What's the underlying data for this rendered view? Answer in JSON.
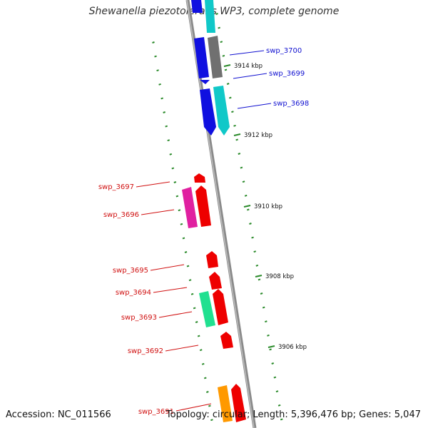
{
  "title": "Shewanella piezotolerans WP3, complete genome",
  "footer": {
    "accession": "Accession: NC_011566",
    "summary": "Topology: circular; Length: 5,396,476 bp; Genes: 5,047"
  },
  "colors": {
    "background": "#ffffff",
    "backbone": "#8a8a8a",
    "tick": "#2a8a2a",
    "label_forward": "#1010d0",
    "label_reverse": "#d01010",
    "cds_blue": "#1010e0",
    "cds_cyan": "#10c8c8",
    "cds_gray": "#707070",
    "cds_red": "#ee0000",
    "cds_magenta": "#e020a0",
    "cds_green": "#20e090",
    "cds_orange": "#ff9900"
  },
  "scale_labels": [
    "3914 kbp",
    "3912 kbp",
    "3910 kbp",
    "3908 kbp",
    "3906 kbp"
  ],
  "gene_labels_forward": [
    "swp_3700",
    "swp_3699",
    "swp_3698"
  ],
  "gene_labels_reverse": [
    "swp_3697",
    "swp_3696",
    "swp_3695",
    "swp_3694",
    "swp_3693",
    "swp_3692",
    "swp_3691"
  ]
}
